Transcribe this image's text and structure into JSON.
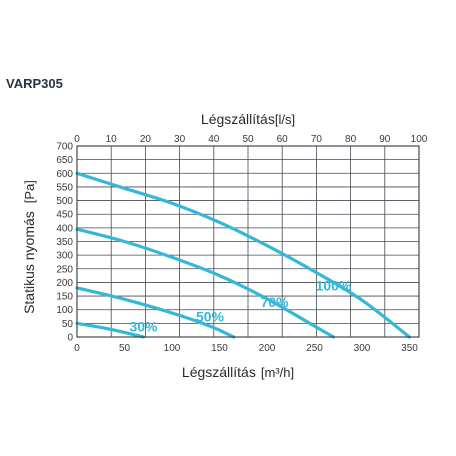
{
  "model": "VARP305",
  "chart_data": {
    "type": "line",
    "title": "",
    "xlabel": "Légszállítás",
    "xlabel_unit": "[m³/h]",
    "x2label": "Légszállítás",
    "x2label_unit": "[l/s]",
    "ylabel": "Statikus nyomás",
    "ylabel_unit": "[Pa]",
    "xlim": [
      0,
      360
    ],
    "ylim": [
      0,
      700
    ],
    "x_ticks": [
      0,
      50,
      100,
      150,
      200,
      250,
      300,
      350
    ],
    "y_ticks": [
      0,
      50,
      100,
      150,
      200,
      250,
      300,
      350,
      400,
      450,
      500,
      550,
      600,
      650,
      700
    ],
    "x2lim": [
      0,
      100
    ],
    "x2_ticks": [
      0,
      10,
      20,
      30,
      40,
      50,
      60,
      70,
      80,
      90,
      100
    ],
    "grid": true,
    "series": [
      {
        "name": "100%",
        "x": [
          0,
          50,
          100,
          150,
          200,
          250,
          300,
          350
        ],
        "y": [
          600,
          545,
          490,
          420,
          335,
          240,
          135,
          0
        ]
      },
      {
        "name": "70%",
        "x": [
          0,
          50,
          100,
          150,
          200,
          250,
          270
        ],
        "y": [
          395,
          350,
          292,
          225,
          140,
          40,
          0
        ]
      },
      {
        "name": "50%",
        "x": [
          0,
          50,
          100,
          140,
          165
        ],
        "y": [
          180,
          138,
          88,
          40,
          0
        ]
      },
      {
        "name": "30%",
        "x": [
          0,
          30,
          50,
          70
        ],
        "y": [
          50,
          32,
          17,
          0
        ]
      }
    ]
  }
}
